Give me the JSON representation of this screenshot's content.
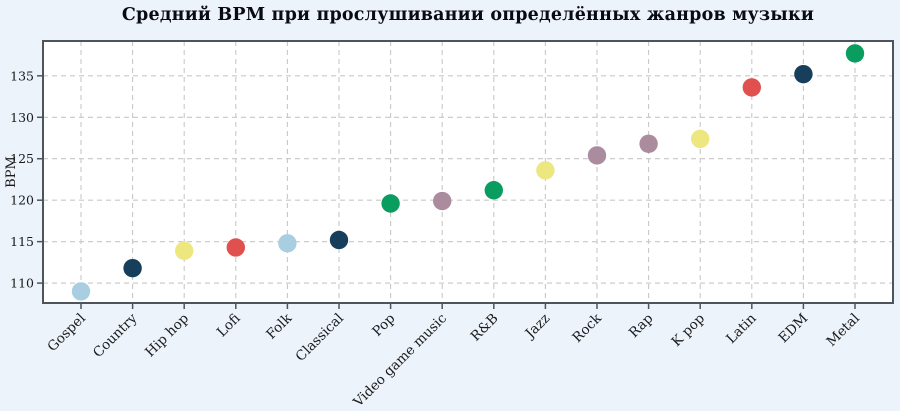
{
  "title": "Средний BPM при прослушивании определённых жанров музыки",
  "chart_data": {
    "type": "scatter",
    "title": "Средний BPM при прослушивании определённых жанров музыки",
    "xlabel": "",
    "ylabel": "BPM",
    "categories": [
      "Gospel",
      "Country",
      "Hip hop",
      "Lofi",
      "Folk",
      "Classical",
      "Pop",
      "Video game music",
      "R&B",
      "Jazz",
      "Rock",
      "Rap",
      "K pop",
      "Latin",
      "EDM",
      "Metal"
    ],
    "values": [
      109.0,
      111.8,
      113.9,
      114.3,
      114.8,
      115.2,
      119.6,
      119.9,
      121.2,
      123.6,
      125.4,
      126.8,
      127.4,
      133.6,
      135.2,
      137.7
    ],
    "point_colors": [
      "#a9cee2",
      "#173f5c",
      "#ece77f",
      "#e0504e",
      "#a9cee2",
      "#173f5c",
      "#0a9d60",
      "#ab8b9e",
      "#0a9d60",
      "#ece77f",
      "#ab8b9e",
      "#ab8b9e",
      "#ece77f",
      "#e0504e",
      "#173f5c",
      "#0a9d60"
    ],
    "yticks": [
      110,
      115,
      120,
      125,
      130,
      135
    ],
    "ylim": [
      107.6,
      139.2
    ],
    "grid": "dashed, both axes",
    "legend": "none",
    "x_tick_rotation_deg": 45,
    "colors": {
      "figure_background": "#edf3fb",
      "plot_background": "#ffffff",
      "gridline": "#c8c8c8",
      "spine": "#4d545b",
      "tick_text": "#1a1a1a"
    }
  }
}
